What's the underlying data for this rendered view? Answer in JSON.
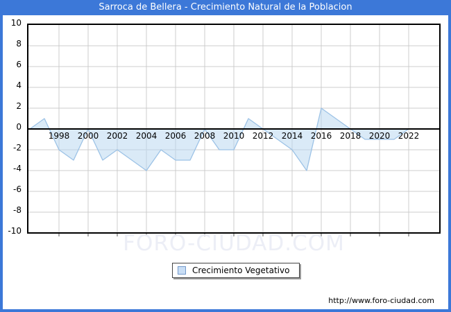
{
  "window": {
    "title": "Sarroca de Bellera - Crecimiento Natural de la Poblacion",
    "title_bar_color": "#3c78d8"
  },
  "legend": {
    "label": "Crecimiento Vegetativo"
  },
  "watermark": "FORO-CIUDAD.COM",
  "footer": {
    "url": "http://www.foro-ciudad.com"
  },
  "chart_data": {
    "type": "area",
    "title": "Sarroca de Bellera - Crecimiento Natural de la Poblacion",
    "xlabel": "",
    "ylabel": "",
    "ylim": [
      -10,
      10
    ],
    "xlim": [
      1996,
      2022
    ],
    "grid": true,
    "legend_position": "bottom-center",
    "xticks": [
      1998,
      2000,
      2002,
      2004,
      2006,
      2008,
      2010,
      2012,
      2014,
      2016,
      2018,
      2020,
      2022
    ],
    "yticks": [
      10,
      8,
      6,
      4,
      2,
      0,
      -2,
      -4,
      -6,
      -8,
      -10
    ],
    "series": [
      {
        "name": "Crecimiento Vegetativo",
        "x": [
          1996,
          1997,
          1998,
          1999,
          2000,
          2001,
          2002,
          2003,
          2004,
          2005,
          2006,
          2007,
          2008,
          2009,
          2010,
          2011,
          2012,
          2013,
          2014,
          2015,
          2016,
          2017,
          2018,
          2019,
          2020,
          2021,
          2022
        ],
        "values": [
          0,
          1,
          -2,
          -3,
          0,
          -3,
          -2,
          -3,
          -4,
          -2,
          -3,
          -3,
          0,
          -2,
          -2,
          1,
          0,
          -1,
          -2,
          -4,
          2,
          1,
          0,
          -1,
          -1,
          -1,
          0
        ]
      }
    ],
    "colors": {
      "line": "#9cc2e6",
      "fill": "#bcd8f0",
      "fill_opacity": 0.55,
      "grid": "#cccccc",
      "axis": "#000000",
      "tick_label": "#000000"
    }
  }
}
